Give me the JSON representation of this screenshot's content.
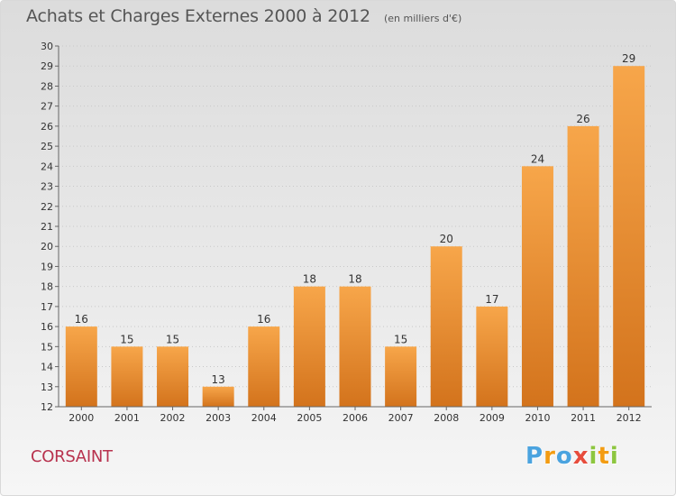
{
  "header": {
    "title": "Achats et Charges Externes 2000 à 2012",
    "unit": "(en milliers d'€)"
  },
  "footer": {
    "commune": "CORSAINT",
    "logo_letters": [
      "P",
      "r",
      "o",
      "x",
      "i",
      "t",
      "i"
    ],
    "logo_colors": [
      "#4aa3df",
      "#f39c12",
      "#4aa3df",
      "#e74c3c",
      "#8dc63f",
      "#f39c12",
      "#8dc63f"
    ]
  },
  "colors": {
    "bar_light": "#f7a64a",
    "bar_dark": "#d3731c",
    "grid": "#c8c8c8",
    "axis": "#666666"
  },
  "chart_data": {
    "type": "bar",
    "title": "Achats et Charges Externes 2000 à 2012",
    "subtitle": "(en milliers d'€)",
    "xlabel": "",
    "ylabel": "",
    "categories": [
      "2000",
      "2001",
      "2002",
      "2003",
      "2004",
      "2005",
      "2006",
      "2007",
      "2008",
      "2009",
      "2010",
      "2011",
      "2012"
    ],
    "values": [
      16,
      15,
      15,
      13,
      16,
      18,
      18,
      15,
      20,
      17,
      24,
      26,
      29
    ],
    "ylim": [
      12,
      30
    ],
    "yticks": [
      12,
      13,
      14,
      15,
      16,
      17,
      18,
      19,
      20,
      21,
      22,
      23,
      24,
      25,
      26,
      27,
      28,
      29,
      30
    ],
    "grid": true,
    "legend": "none"
  }
}
